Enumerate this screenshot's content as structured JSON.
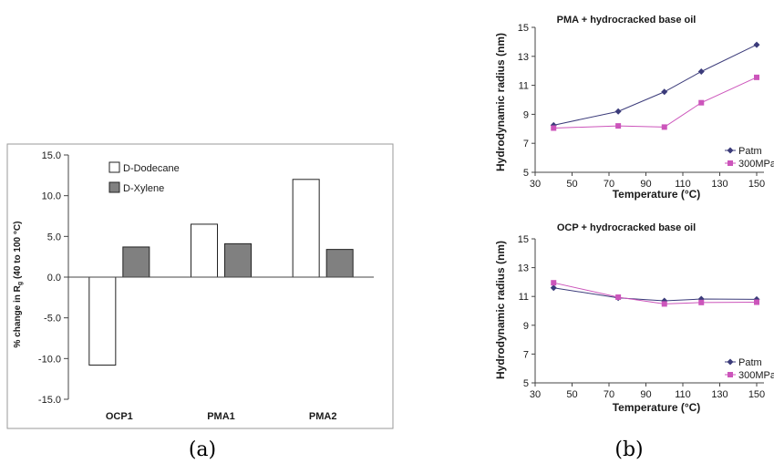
{
  "captions": {
    "a": "(a)",
    "b": "(b)"
  },
  "chart_data": [
    {
      "type": "bar",
      "title": "",
      "xlabel": "",
      "ylabel": "% change in Rg (40 to 100 °C)",
      "ylabel_parts": {
        "prefix": "% change in R",
        "sub": "g",
        "suffix": " (40 to 100 °C)"
      },
      "categories": [
        "OCP1",
        "PMA1",
        "PMA2"
      ],
      "series": [
        {
          "name": "D-Dodecane",
          "values": [
            -10.8,
            6.5,
            12.0
          ],
          "color": "#ffffff"
        },
        {
          "name": "D-Xylene",
          "values": [
            3.7,
            4.1,
            3.4
          ],
          "color": "#808080"
        }
      ],
      "ylim": [
        -15,
        15
      ],
      "yticks": [
        "15.0",
        "10.0",
        "5.0",
        "0.0",
        "-5.0",
        "-10.0",
        "-15.0"
      ],
      "legend": "top-left",
      "grid": false
    },
    {
      "type": "line",
      "title": "PMA + hydrocracked base oil",
      "xlabel": "Temperature (°C)",
      "ylabel": "Hydrodynamic radius (nm)",
      "x": [
        40,
        75,
        100,
        120,
        150
      ],
      "series": [
        {
          "name": "Patm",
          "values": [
            8.25,
            9.2,
            10.55,
            11.95,
            13.8
          ],
          "color": "#3b3b7a",
          "marker": "diamond"
        },
        {
          "name": "300MPa",
          "values": [
            8.05,
            8.2,
            8.12,
            9.8,
            11.55
          ],
          "color": "#cc55bb",
          "marker": "square"
        }
      ],
      "xlim": [
        30,
        150
      ],
      "ylim": [
        5,
        15
      ],
      "xticks": [
        "30",
        "50",
        "70",
        "90",
        "110",
        "130",
        "150"
      ],
      "yticks": [
        "15",
        "13",
        "11",
        "9",
        "7",
        "5"
      ],
      "legend": "bottom-right",
      "grid": false
    },
    {
      "type": "line",
      "title": "OCP + hydrocracked base oil",
      "xlabel": "Temperature (°C)",
      "ylabel": "Hydrodynamic radius (nm)",
      "x": [
        40,
        75,
        100,
        120,
        150
      ],
      "series": [
        {
          "name": "Patm",
          "values": [
            11.6,
            10.9,
            10.7,
            10.82,
            10.8
          ],
          "color": "#3b3b7a",
          "marker": "diamond"
        },
        {
          "name": "300MPa",
          "values": [
            11.95,
            10.95,
            10.48,
            10.58,
            10.6
          ],
          "color": "#cc55bb",
          "marker": "square"
        }
      ],
      "xlim": [
        30,
        150
      ],
      "ylim": [
        5,
        15
      ],
      "xticks": [
        "30",
        "50",
        "70",
        "90",
        "110",
        "130",
        "150"
      ],
      "yticks": [
        "15",
        "13",
        "11",
        "9",
        "7",
        "5"
      ],
      "legend": "bottom-right",
      "grid": false
    }
  ]
}
